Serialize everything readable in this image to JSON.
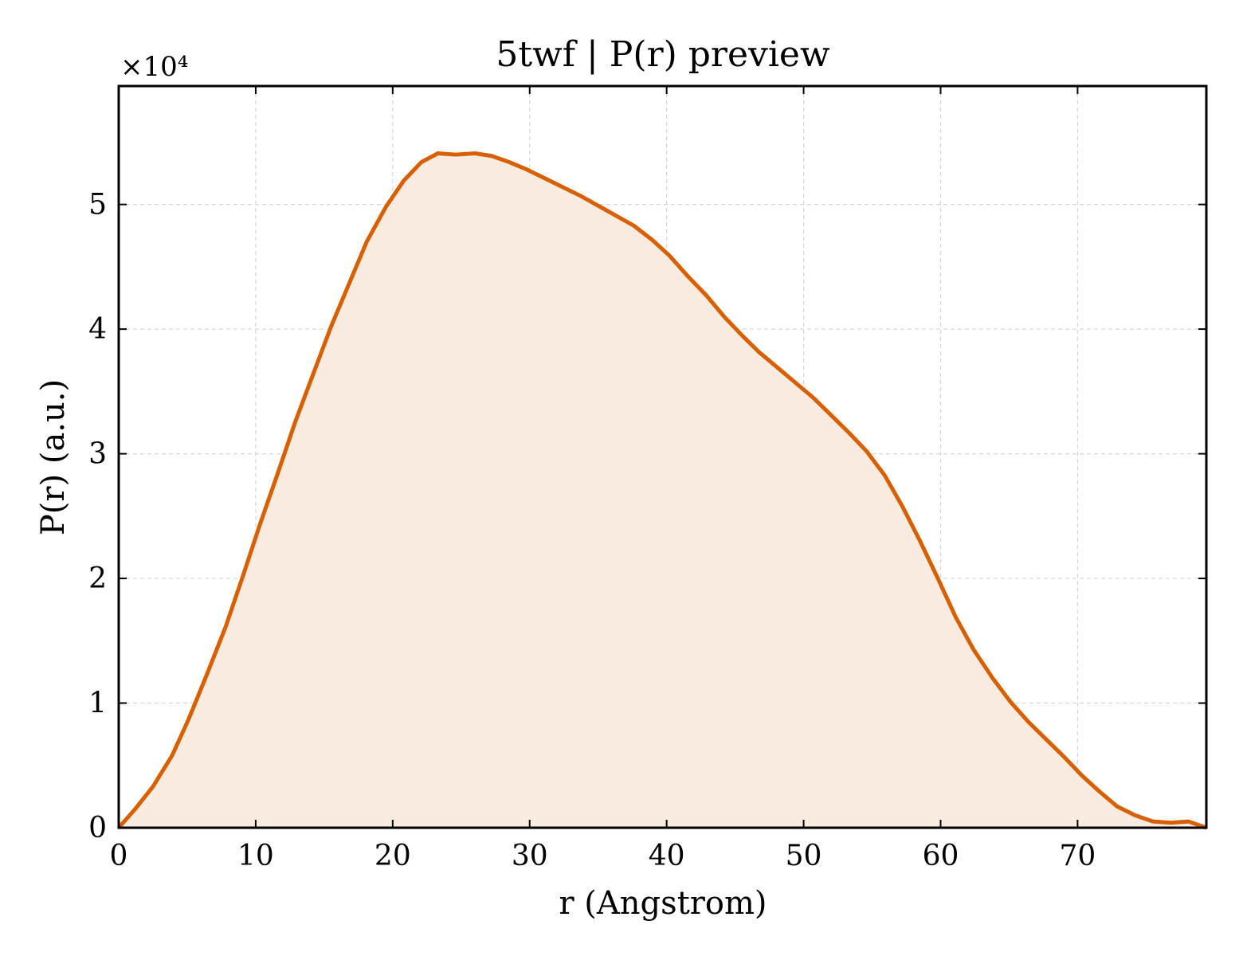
{
  "chart_data": {
    "type": "area",
    "title": "5twf | P(r) preview",
    "xlabel": "r (Angstrom)",
    "ylabel": "P(r) (a.u.)",
    "y_offset_label": "×10⁴",
    "y_scale": 10000,
    "xlim": [
      0,
      79.4
    ],
    "ylim": [
      0,
      59500
    ],
    "x_ticks": [
      0,
      10,
      20,
      30,
      40,
      50,
      60,
      70
    ],
    "x_tick_labels": [
      "0",
      "10",
      "20",
      "30",
      "40",
      "50",
      "60",
      "70"
    ],
    "y_ticks": [
      0,
      10000,
      20000,
      30000,
      40000,
      50000
    ],
    "y_tick_labels": [
      "0",
      "1",
      "2",
      "3",
      "4",
      "5"
    ],
    "grid": true,
    "line_color": "#d95f02",
    "fill_color": "#f9ebe0",
    "series": [
      {
        "x": [
          0,
          1.2,
          2.5,
          3.9,
          5.1,
          6.4,
          7.8,
          9.1,
          10.3,
          11.6,
          12.9,
          14.3,
          15.5,
          16.8,
          18.1,
          19.5,
          20.8,
          22.1,
          23.3,
          24.6,
          26.0,
          27.2,
          28.5,
          29.8,
          31.1,
          32.4,
          33.7,
          35.0,
          36.3,
          37.6,
          38.9,
          40.2,
          41.5,
          42.9,
          44.2,
          45.5,
          46.7,
          48.0,
          49.4,
          50.7,
          52.0,
          53.3,
          54.6,
          55.9,
          57.2,
          58.5,
          59.8,
          61.1,
          62.4,
          63.8,
          65.1,
          66.4,
          67.7,
          69.0,
          70.3,
          71.6,
          72.9,
          74.2,
          75.5,
          76.8,
          78.1,
          79.4
        ],
        "y": [
          0,
          1500,
          3300,
          5800,
          8700,
          12200,
          16100,
          20300,
          24300,
          28400,
          32600,
          36700,
          40200,
          43600,
          47000,
          49800,
          51900,
          53400,
          54100,
          54000,
          54100,
          53900,
          53400,
          52800,
          52100,
          51400,
          50700,
          49900,
          49100,
          48300,
          47200,
          45900,
          44300,
          42700,
          41000,
          39500,
          38200,
          37000,
          35700,
          34500,
          33100,
          31700,
          30200,
          28300,
          25800,
          23000,
          20000,
          16900,
          14300,
          12000,
          10100,
          8500,
          7100,
          5700,
          4200,
          2900,
          1700,
          1000,
          500,
          400,
          500,
          0
        ]
      }
    ]
  }
}
